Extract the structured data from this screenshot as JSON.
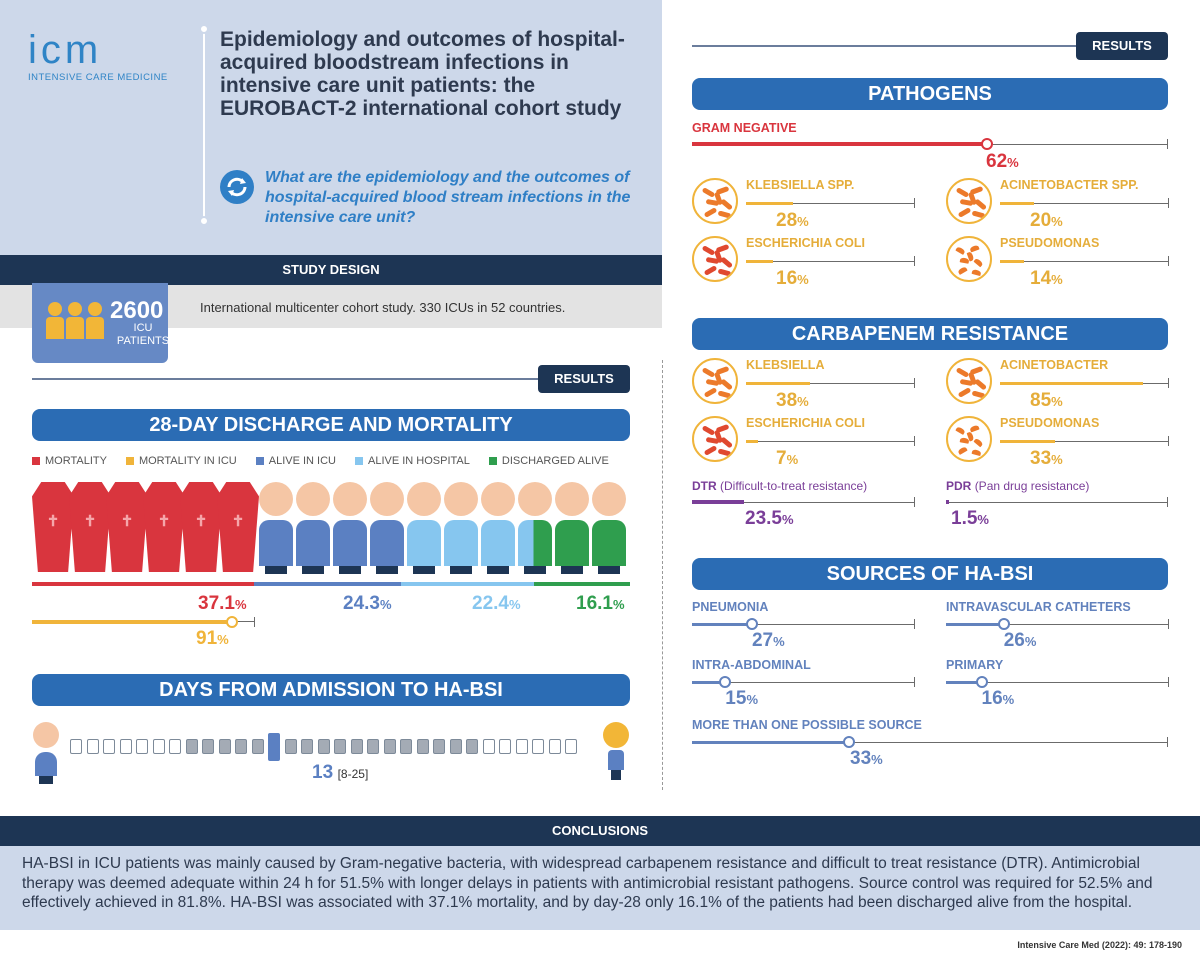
{
  "header": {
    "logo_main": "icm",
    "logo_sub": "INTENSIVE CARE MEDICINE",
    "title": "Epidemiology and outcomes of hospital-acquired bloodstream infections in intensive care unit patients: the EUROBACT-2 international cohort study",
    "question": "What are the epidemiology and the outcomes of hospital-acquired blood stream infections in the intensive care unit?"
  },
  "study_design": {
    "label": "STUDY DESIGN",
    "count": "2600",
    "count_unit": "ICU PATIENTS",
    "description": "International multicenter cohort study. 330 ICUs in 52 countries."
  },
  "results_label": "RESULTS",
  "discharge": {
    "title": "28-DAY DISCHARGE AND MORTALITY",
    "legend": [
      {
        "label": "MORTALITY",
        "color": "#d9353e"
      },
      {
        "label": "MORTALITY IN ICU",
        "color": "#f0b43a"
      },
      {
        "label": "ALIVE IN ICU",
        "color": "#5b80c2"
      },
      {
        "label": "ALIVE IN HOSPITAL",
        "color": "#86c6ef"
      },
      {
        "label": "DISCHARGED ALIVE",
        "color": "#2f9e4e"
      }
    ],
    "mortality_value": "37.1",
    "alive_icu_value": "24.3",
    "alive_hospital_value": "22.4",
    "discharged_value": "16.1",
    "mortality_icu_value": "91",
    "pct_sign": "%"
  },
  "days": {
    "title": "DAYS FROM ADMISSION TO HA-BSI",
    "median": "13",
    "iqr": "[8-25]",
    "total_cells": 31,
    "iqr_start": 8,
    "iqr_end": 25,
    "median_day": 13
  },
  "pathogens": {
    "title": "PATHOGENS",
    "gram_negative_label": "GRAM NEGATIVE",
    "gram_negative_value": 62,
    "items": [
      {
        "name": "KLEBSIELLA SPP.",
        "value": 28
      },
      {
        "name": "ACINETOBACTER SPP.",
        "value": 20
      },
      {
        "name": "ESCHERICHIA COLI",
        "value": 16
      },
      {
        "name": "PSEUDOMONAS",
        "value": 14
      }
    ]
  },
  "carbapenem": {
    "title": "CARBAPENEM RESISTANCE",
    "items": [
      {
        "name": "KLEBSIELLA",
        "value": 38
      },
      {
        "name": "ACINETOBACTER",
        "value": 85
      },
      {
        "name": "ESCHERICHIA COLI",
        "value": 7
      },
      {
        "name": "PSEUDOMONAS",
        "value": 33
      }
    ],
    "dtr_label": "DTR",
    "dtr_desc": "(Difficult-to-treat resistance)",
    "dtr_value": 23.5,
    "pdr_label": "PDR",
    "pdr_desc": "(Pan drug resistance)",
    "pdr_value": 1.5
  },
  "sources": {
    "title": "SOURCES OF HA-BSI",
    "items": [
      {
        "name": "PNEUMONIA",
        "value": 27
      },
      {
        "name": "INTRAVASCULAR CATHETERS",
        "value": 26
      },
      {
        "name": "INTRA-ABDOMINAL",
        "value": 15
      },
      {
        "name": "PRIMARY",
        "value": 16
      }
    ],
    "multi_label": "MORE THAN ONE POSSIBLE SOURCE",
    "multi_value": 33
  },
  "conclusions": {
    "label": "CONCLUSIONS",
    "text": "HA-BSI in ICU patients was mainly caused by Gram-negative bacteria, with widespread carbapenem resistance and difficult to treat resistance (DTR). Antimicrobial therapy was deemed adequate within 24 h for 51.5% with longer delays in patients with antimicrobial resistant pathogens. Source control was required for 52.5% and effectively achieved in 81.8%. HA-BSI was associated with 37.1% mortality, and by day-28 only 16.1% of the patients had been discharged alive from the hospital."
  },
  "reference": "Intensive Care Med (2022): 49: 178-190",
  "colors": {
    "navy": "#1d3554",
    "blue": "#2b6cb4",
    "red": "#d9353e",
    "yellow": "#f0b43a",
    "purple": "#7a3e98",
    "source_blue": "#6282bd"
  }
}
